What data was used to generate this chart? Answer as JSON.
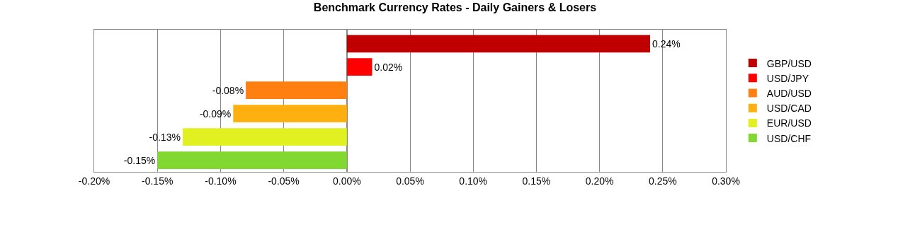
{
  "chart_data": {
    "type": "bar",
    "title": "Benchmark Currency Rates - Daily Gainers & Losers",
    "orientation": "horizontal",
    "stacked": true,
    "categories": [
      null,
      null,
      null,
      null,
      null,
      null
    ],
    "series": [
      {
        "name": "GBP/USD",
        "color": "#c00000",
        "values": [
          0.24,
          null,
          null,
          null,
          null,
          null
        ],
        "value_labels": [
          "0.24%",
          null,
          null,
          null,
          null,
          null
        ]
      },
      {
        "name": "USD/JPY",
        "color": "#ff0000",
        "values": [
          null,
          0.02,
          null,
          null,
          null,
          null
        ],
        "value_labels": [
          null,
          "0.02%",
          null,
          null,
          null,
          null
        ]
      },
      {
        "name": "AUD/USD",
        "color": "#ff8010",
        "values": [
          null,
          null,
          -0.08,
          null,
          null,
          null
        ],
        "value_labels": [
          null,
          null,
          "-0.08%",
          null,
          null,
          null
        ]
      },
      {
        "name": "USD/CAD",
        "color": "#ffb010",
        "values": [
          null,
          null,
          null,
          -0.09,
          null,
          null
        ],
        "value_labels": [
          null,
          null,
          null,
          "-0.09%",
          null,
          null
        ]
      },
      {
        "name": "EUR/USD",
        "color": "#e0f020",
        "values": [
          null,
          null,
          null,
          null,
          -0.13,
          null
        ],
        "value_labels": [
          null,
          null,
          null,
          null,
          "-0.13%",
          null
        ]
      },
      {
        "name": "USD/CHF",
        "color": "#80d830",
        "values": [
          null,
          null,
          null,
          null,
          null,
          -0.15
        ],
        "value_labels": [
          null,
          null,
          null,
          null,
          null,
          "-0.15%"
        ]
      }
    ],
    "xlim": [
      -0.2,
      0.3
    ],
    "xticks": [
      {
        "value": -0.2,
        "label": "-0.20%"
      },
      {
        "value": -0.15,
        "label": "-0.15%"
      },
      {
        "value": -0.1,
        "label": "-0.10%"
      },
      {
        "value": -0.05,
        "label": "-0.05%"
      },
      {
        "value": 0,
        "label": "0.00%"
      },
      {
        "value": 0.05,
        "label": "0.05%"
      },
      {
        "value": 0.1,
        "label": "0.10%"
      },
      {
        "value": 0.15,
        "label": "0.15%"
      },
      {
        "value": 0.2,
        "label": "0.20%"
      },
      {
        "value": 0.25,
        "label": "0.25%"
      },
      {
        "value": 0.3,
        "label": "0.30%"
      }
    ],
    "grid": "x",
    "legend": "right",
    "tick_labels": "x"
  }
}
